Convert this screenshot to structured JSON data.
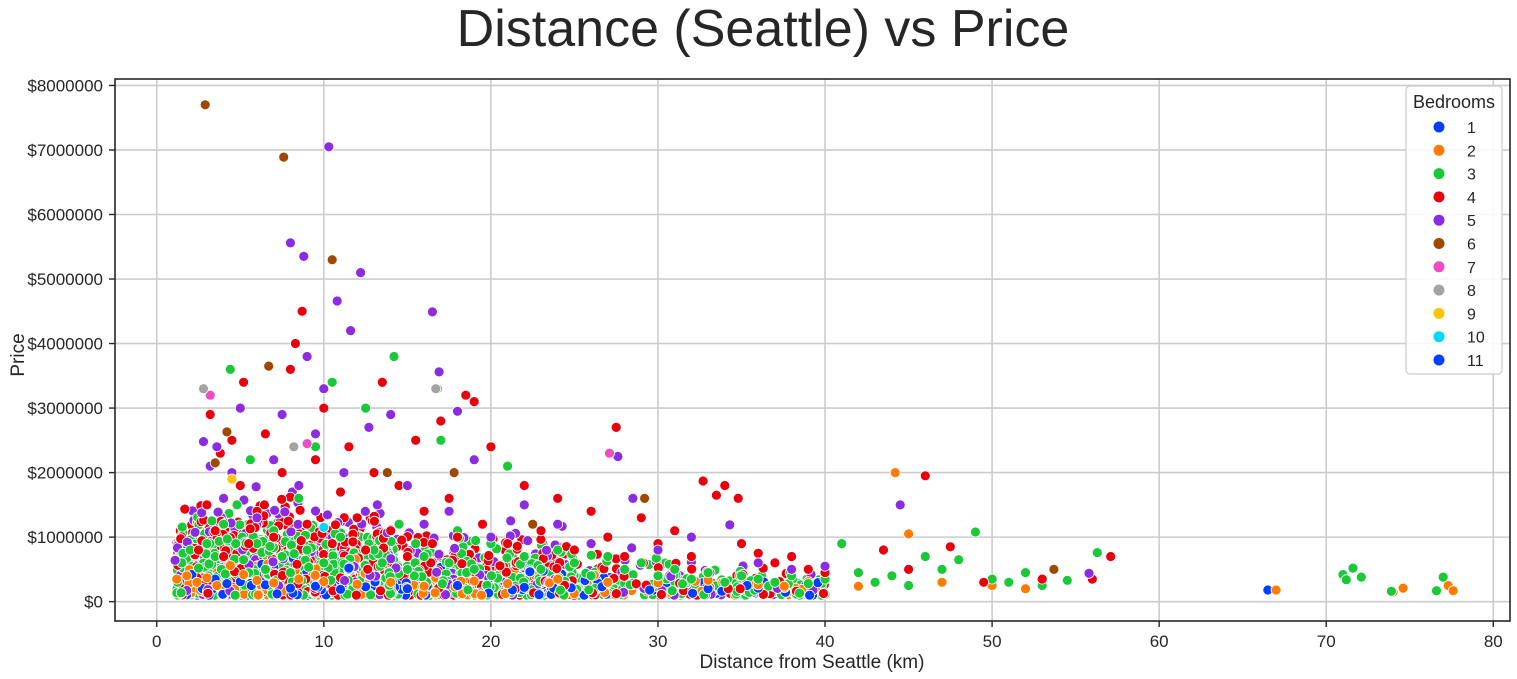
{
  "chart_data": {
    "type": "scatter",
    "title": "Distance (Seattle) vs Price",
    "xlabel": "Distance from Seattle (km)",
    "ylabel": "Price",
    "xlim": [
      -2.5,
      81
    ],
    "ylim": [
      -300000,
      8100000
    ],
    "x_ticks": [
      0,
      10,
      20,
      30,
      40,
      50,
      60,
      70,
      80
    ],
    "x_tick_labels": [
      "0",
      "10",
      "20",
      "30",
      "40",
      "50",
      "60",
      "70",
      "80"
    ],
    "y_ticks": [
      0,
      1000000,
      2000000,
      3000000,
      4000000,
      5000000,
      6000000,
      7000000,
      8000000
    ],
    "y_tick_labels": [
      "$0",
      "$1000000",
      "$2000000",
      "$3000000",
      "$4000000",
      "$5000000",
      "$6000000",
      "$7000000",
      "$8000000"
    ],
    "grid": true,
    "legend": {
      "title": "Bedrooms",
      "placement": "top-right",
      "entries": [
        {
          "label": "1",
          "color": "#023eff"
        },
        {
          "label": "2",
          "color": "#ff7c00"
        },
        {
          "label": "3",
          "color": "#1ac938"
        },
        {
          "label": "4",
          "color": "#e8000b"
        },
        {
          "label": "5",
          "color": "#8b2be2"
        },
        {
          "label": "6",
          "color": "#9f4800"
        },
        {
          "label": "7",
          "color": "#f14cc1"
        },
        {
          "label": "8",
          "color": "#a3a3a3"
        },
        {
          "label": "9",
          "color": "#ffc400"
        },
        {
          "label": "10",
          "color": "#00d7ff"
        },
        {
          "label": "11",
          "color": "#023eff"
        }
      ]
    },
    "series": [
      {
        "bedrooms": "1",
        "color": "#023eff",
        "points": [
          [
            2.1,
            420000
          ],
          [
            3.5,
            350000
          ],
          [
            4.2,
            280000
          ],
          [
            5.0,
            310000
          ],
          [
            6.5,
            260000
          ],
          [
            7.2,
            120000
          ],
          [
            8.0,
            210000
          ],
          [
            9.5,
            240000
          ],
          [
            11.0,
            190000
          ],
          [
            12.5,
            230000
          ],
          [
            15.0,
            200000
          ],
          [
            18.0,
            250000
          ],
          [
            22.0,
            220000
          ],
          [
            29.5,
            180000
          ],
          [
            33.0,
            200000
          ],
          [
            36.0,
            210000
          ],
          [
            66.5,
            180000
          ]
        ]
      },
      {
        "bedrooms": "2",
        "color": "#ff7c00",
        "points": [
          [
            1.2,
            350000
          ],
          [
            1.8,
            400000
          ],
          [
            2.4,
            300000
          ],
          [
            3.0,
            370000
          ],
          [
            3.6,
            250000
          ],
          [
            4.4,
            560000
          ],
          [
            5.2,
            420000
          ],
          [
            6.0,
            330000
          ],
          [
            7.0,
            290000
          ],
          [
            8.5,
            350000
          ],
          [
            10.0,
            310000
          ],
          [
            12.0,
            270000
          ],
          [
            14.0,
            300000
          ],
          [
            16.0,
            240000
          ],
          [
            19.0,
            320000
          ],
          [
            21.0,
            280000
          ],
          [
            24.0,
            350000
          ],
          [
            27.0,
            300000
          ],
          [
            30.0,
            290000
          ],
          [
            33.0,
            330000
          ],
          [
            36.0,
            260000
          ],
          [
            39.0,
            310000
          ],
          [
            42.0,
            240000
          ],
          [
            44.2,
            2000000
          ],
          [
            45.0,
            1050000
          ],
          [
            47.0,
            300000
          ],
          [
            50.0,
            250000
          ],
          [
            52.0,
            200000
          ],
          [
            67.0,
            180000
          ],
          [
            74.0,
            150000
          ],
          [
            74.6,
            210000
          ],
          [
            77.3,
            250000
          ],
          [
            77.6,
            170000
          ]
        ]
      },
      {
        "bedrooms": "3",
        "color": "#1ac938",
        "points": [
          [
            1.5,
            600000
          ],
          [
            2.0,
            800000
          ],
          [
            2.5,
            520000
          ],
          [
            3.0,
            900000
          ],
          [
            3.5,
            700000
          ],
          [
            4.0,
            1200000
          ],
          [
            4.4,
            3600000
          ],
          [
            4.8,
            1500000
          ],
          [
            5.2,
            650000
          ],
          [
            5.6,
            2200000
          ],
          [
            6.0,
            900000
          ],
          [
            6.5,
            500000
          ],
          [
            7.0,
            1100000
          ],
          [
            7.5,
            700000
          ],
          [
            8.0,
            450000
          ],
          [
            8.5,
            1600000
          ],
          [
            9.0,
            800000
          ],
          [
            9.5,
            2400000
          ],
          [
            10.0,
            600000
          ],
          [
            10.5,
            3400000
          ],
          [
            11.0,
            1000000
          ],
          [
            11.5,
            500000
          ],
          [
            12.0,
            1300000
          ],
          [
            12.5,
            3000000
          ],
          [
            13.0,
            800000
          ],
          [
            13.5,
            600000
          ],
          [
            14.2,
            3800000
          ],
          [
            14.5,
            1200000
          ],
          [
            15.0,
            500000
          ],
          [
            15.5,
            900000
          ],
          [
            16.0,
            700000
          ],
          [
            16.8,
            3300000
          ],
          [
            17.0,
            2500000
          ],
          [
            17.5,
            600000
          ],
          [
            18.0,
            1100000
          ],
          [
            19.0,
            500000
          ],
          [
            20.0,
            900000
          ],
          [
            21.0,
            2100000
          ],
          [
            22.0,
            700000
          ],
          [
            23.0,
            500000
          ],
          [
            24.0,
            800000
          ],
          [
            25.0,
            600000
          ],
          [
            26.0,
            400000
          ],
          [
            27.0,
            700000
          ],
          [
            28.0,
            500000
          ],
          [
            29.0,
            600000
          ],
          [
            30.0,
            400000
          ],
          [
            31.0,
            500000
          ],
          [
            32.0,
            350000
          ],
          [
            33.0,
            450000
          ],
          [
            34.0,
            300000
          ],
          [
            35.0,
            400000
          ],
          [
            36.0,
            350000
          ],
          [
            37.0,
            300000
          ],
          [
            38.0,
            400000
          ],
          [
            39.0,
            280000
          ],
          [
            40.0,
            350000
          ],
          [
            41.0,
            900000
          ],
          [
            42.0,
            450000
          ],
          [
            43.0,
            300000
          ],
          [
            44.0,
            400000
          ],
          [
            45.0,
            250000
          ],
          [
            46.0,
            700000
          ],
          [
            47.0,
            500000
          ],
          [
            48.0,
            650000
          ],
          [
            49.0,
            1080000
          ],
          [
            50.0,
            350000
          ],
          [
            51.0,
            300000
          ],
          [
            52.0,
            450000
          ],
          [
            53.0,
            250000
          ],
          [
            54.5,
            330000
          ],
          [
            56.3,
            760000
          ],
          [
            71.0,
            420000
          ],
          [
            71.2,
            340000
          ],
          [
            71.6,
            520000
          ],
          [
            72.1,
            380000
          ],
          [
            73.9,
            160000
          ],
          [
            76.6,
            170000
          ],
          [
            77.0,
            380000
          ]
        ]
      },
      {
        "bedrooms": "4",
        "color": "#e8000b",
        "points": [
          [
            2.5,
            800000
          ],
          [
            3.0,
            1500000
          ],
          [
            3.2,
            2900000
          ],
          [
            3.5,
            1100000
          ],
          [
            3.8,
            2300000
          ],
          [
            4.0,
            700000
          ],
          [
            4.5,
            2500000
          ],
          [
            5.0,
            1800000
          ],
          [
            5.2,
            3400000
          ],
          [
            5.5,
            900000
          ],
          [
            6.0,
            1400000
          ],
          [
            6.5,
            2600000
          ],
          [
            7.0,
            1000000
          ],
          [
            7.5,
            2000000
          ],
          [
            8.0,
            3600000
          ],
          [
            8.3,
            4000000
          ],
          [
            8.7,
            4500000
          ],
          [
            9.0,
            1200000
          ],
          [
            9.5,
            2200000
          ],
          [
            10.0,
            3000000
          ],
          [
            10.5,
            900000
          ],
          [
            11.0,
            1700000
          ],
          [
            11.5,
            2400000
          ],
          [
            12.0,
            1300000
          ],
          [
            12.5,
            800000
          ],
          [
            13.0,
            2000000
          ],
          [
            13.5,
            3400000
          ],
          [
            14.0,
            1100000
          ],
          [
            14.5,
            1800000
          ],
          [
            15.0,
            700000
          ],
          [
            15.5,
            2500000
          ],
          [
            16.0,
            1400000
          ],
          [
            16.5,
            900000
          ],
          [
            17.0,
            2800000
          ],
          [
            17.5,
            1600000
          ],
          [
            18.0,
            1000000
          ],
          [
            18.5,
            3200000
          ],
          [
            19.0,
            3100000
          ],
          [
            19.5,
            1200000
          ],
          [
            20.0,
            2400000
          ],
          [
            21.0,
            900000
          ],
          [
            22.0,
            1800000
          ],
          [
            23.0,
            1100000
          ],
          [
            24.0,
            1600000
          ],
          [
            25.0,
            800000
          ],
          [
            26.0,
            1400000
          ],
          [
            27.0,
            1000000
          ],
          [
            27.5,
            2700000
          ],
          [
            28.0,
            700000
          ],
          [
            29.0,
            1300000
          ],
          [
            30.0,
            900000
          ],
          [
            31.0,
            1100000
          ],
          [
            32.0,
            700000
          ],
          [
            32.7,
            1870000
          ],
          [
            33.5,
            1650000
          ],
          [
            34.0,
            1800000
          ],
          [
            34.8,
            1600000
          ],
          [
            35.0,
            900000
          ],
          [
            36.0,
            750000
          ],
          [
            37.0,
            600000
          ],
          [
            38.0,
            700000
          ],
          [
            39.0,
            500000
          ],
          [
            40.0,
            450000
          ],
          [
            43.5,
            800000
          ],
          [
            45.0,
            500000
          ],
          [
            46.0,
            1950000
          ],
          [
            47.5,
            850000
          ],
          [
            49.5,
            300000
          ],
          [
            53.0,
            350000
          ],
          [
            56.0,
            350000
          ],
          [
            57.1,
            700000
          ]
        ]
      },
      {
        "bedrooms": "5",
        "color": "#8b2be2",
        "points": [
          [
            1.1,
            640000
          ],
          [
            2.8,
            2480000
          ],
          [
            3.2,
            2100000
          ],
          [
            3.6,
            2400000
          ],
          [
            4.0,
            1600000
          ],
          [
            4.5,
            2000000
          ],
          [
            5.0,
            3000000
          ],
          [
            6.0,
            1300000
          ],
          [
            7.0,
            2200000
          ],
          [
            7.5,
            2900000
          ],
          [
            8.0,
            5560000
          ],
          [
            8.5,
            1800000
          ],
          [
            8.8,
            5350000
          ],
          [
            9.0,
            3800000
          ],
          [
            9.5,
            2600000
          ],
          [
            10.0,
            3300000
          ],
          [
            10.3,
            7050000
          ],
          [
            10.8,
            4660000
          ],
          [
            11.2,
            2000000
          ],
          [
            11.6,
            4200000
          ],
          [
            12.2,
            5100000
          ],
          [
            12.7,
            2700000
          ],
          [
            13.2,
            1500000
          ],
          [
            14.0,
            2900000
          ],
          [
            15.0,
            1800000
          ],
          [
            16.0,
            1200000
          ],
          [
            16.5,
            4490000
          ],
          [
            16.9,
            3560000
          ],
          [
            17.5,
            1400000
          ],
          [
            18.0,
            2950000
          ],
          [
            19.0,
            2200000
          ],
          [
            20.0,
            1000000
          ],
          [
            22.0,
            1500000
          ],
          [
            24.0,
            1200000
          ],
          [
            26.0,
            900000
          ],
          [
            27.6,
            2250000
          ],
          [
            28.5,
            1600000
          ],
          [
            30.0,
            800000
          ],
          [
            32.0,
            1000000
          ],
          [
            34.3,
            1190000
          ],
          [
            36.0,
            600000
          ],
          [
            38.0,
            500000
          ],
          [
            40.0,
            550000
          ],
          [
            44.5,
            1500000
          ],
          [
            55.8,
            440000
          ]
        ]
      },
      {
        "bedrooms": "6",
        "color": "#9f4800",
        "points": [
          [
            2.9,
            7700000
          ],
          [
            3.5,
            2150000
          ],
          [
            4.2,
            2630000
          ],
          [
            6.7,
            3650000
          ],
          [
            7.6,
            6890000
          ],
          [
            10.5,
            5300000
          ],
          [
            13.8,
            2000000
          ],
          [
            17.8,
            2000000
          ],
          [
            22.5,
            1200000
          ],
          [
            29.2,
            1600000
          ],
          [
            53.7,
            500000
          ]
        ]
      },
      {
        "bedrooms": "7",
        "color": "#f14cc1",
        "points": [
          [
            3.2,
            3200000
          ],
          [
            9.0,
            2450000
          ],
          [
            27.1,
            2300000
          ]
        ]
      },
      {
        "bedrooms": "8",
        "color": "#a3a3a3",
        "points": [
          [
            2.8,
            3300000
          ],
          [
            8.2,
            2400000
          ],
          [
            16.7,
            3300000
          ]
        ]
      },
      {
        "bedrooms": "9",
        "color": "#ffc400",
        "points": [
          [
            4.5,
            1900000
          ]
        ]
      },
      {
        "bedrooms": "10",
        "color": "#00d7ff",
        "points": [
          [
            10.0,
            1150000
          ]
        ]
      },
      {
        "bedrooms": "11",
        "color": "#023eff",
        "points": [
          [
            11.5,
            520000
          ]
        ]
      }
    ],
    "dense_cloud": {
      "note_color_keys": [
        "3",
        "2",
        "4",
        "5",
        "1"
      ],
      "colors": {
        "1": "#023eff",
        "2": "#ff7c00",
        "3": "#1ac938",
        "4": "#e8000b",
        "5": "#8b2be2"
      }
    }
  }
}
